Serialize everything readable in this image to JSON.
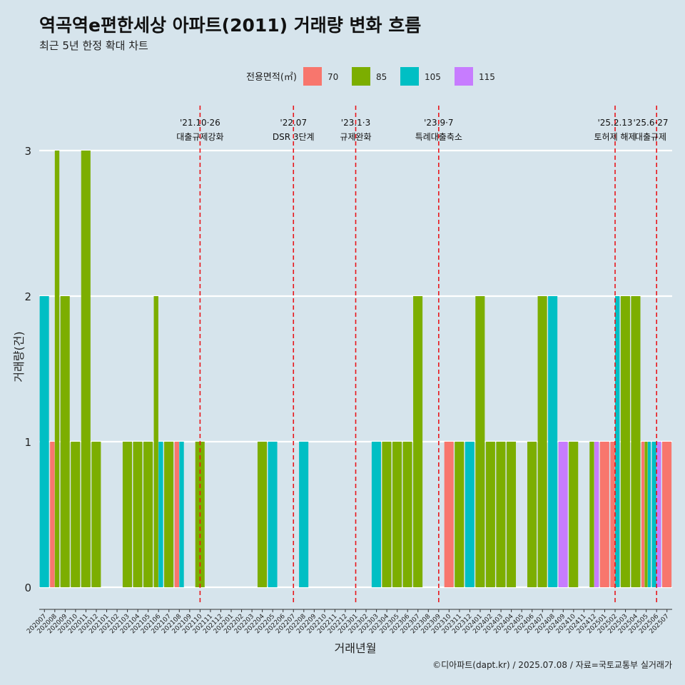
{
  "chart_data": {
    "type": "bar",
    "title": "역곡역e편한세상 아파트(2011) 거래량 변화 흐름",
    "subtitle": "최근 5년 한정 확대 차트",
    "xlabel": "거래년월",
    "ylabel": "거래량(건)",
    "ylim": [
      0,
      3
    ],
    "yticks": [
      "0",
      "1",
      "2",
      "3"
    ],
    "grid": true,
    "legend": {
      "title": "전용면적(㎡)",
      "position": "top"
    },
    "categories": [
      "202007",
      "202008",
      "202009",
      "202010",
      "202011",
      "202012",
      "202101",
      "202102",
      "202103",
      "202104",
      "202105",
      "202106",
      "202107",
      "202108",
      "202109",
      "202110",
      "202111",
      "202112",
      "202201",
      "202202",
      "202203",
      "202204",
      "202205",
      "202206",
      "202207",
      "202208",
      "202209",
      "202210",
      "202211",
      "202212",
      "202301",
      "202302",
      "202303",
      "202304",
      "202305",
      "202306",
      "202307",
      "202308",
      "202309",
      "202310",
      "202311",
      "202312",
      "202401",
      "202402",
      "202403",
      "202404",
      "202405",
      "202406",
      "202407",
      "202408",
      "202409",
      "202410",
      "202411",
      "202412",
      "202501",
      "202502",
      "202503",
      "202504",
      "202505",
      "202506",
      "202507"
    ],
    "series": [
      {
        "name": "70",
        "color": "#F8766D",
        "values": [
          0,
          1,
          0,
          0,
          0,
          0,
          0,
          0,
          0,
          0,
          0,
          0,
          0,
          1,
          0,
          0,
          0,
          0,
          0,
          0,
          0,
          0,
          0,
          0,
          0,
          0,
          0,
          0,
          0,
          0,
          0,
          0,
          0,
          0,
          0,
          0,
          0,
          0,
          0,
          1,
          0,
          0,
          0,
          0,
          0,
          0,
          0,
          0,
          0,
          0,
          0,
          0,
          0,
          0,
          1,
          1,
          0,
          0,
          1,
          0,
          1
        ]
      },
      {
        "name": "85",
        "color": "#7CAE00",
        "values": [
          0,
          3,
          2,
          1,
          3,
          1,
          0,
          0,
          1,
          1,
          1,
          2,
          1,
          0,
          0,
          1,
          0,
          0,
          0,
          0,
          0,
          1,
          0,
          0,
          0,
          0,
          0,
          0,
          0,
          0,
          0,
          0,
          0,
          1,
          1,
          1,
          2,
          0,
          0,
          0,
          1,
          0,
          2,
          1,
          1,
          1,
          0,
          1,
          2,
          0,
          0,
          1,
          0,
          1,
          0,
          0,
          2,
          2,
          1,
          0,
          0
        ]
      },
      {
        "name": "105",
        "color": "#00BFC4",
        "values": [
          2,
          0,
          0,
          0,
          0,
          0,
          0,
          0,
          0,
          0,
          0,
          1,
          0,
          1,
          0,
          0,
          0,
          0,
          0,
          0,
          0,
          0,
          1,
          0,
          0,
          1,
          0,
          0,
          0,
          0,
          0,
          0,
          1,
          0,
          0,
          0,
          0,
          0,
          0,
          0,
          0,
          1,
          0,
          0,
          0,
          0,
          0,
          0,
          0,
          2,
          0,
          0,
          0,
          0,
          0,
          2,
          0,
          0,
          1,
          1,
          0
        ]
      },
      {
        "name": "115",
        "color": "#C77CFF",
        "values": [
          0,
          0,
          0,
          0,
          0,
          0,
          0,
          0,
          0,
          0,
          0,
          0,
          0,
          0,
          0,
          0,
          0,
          0,
          0,
          0,
          0,
          0,
          0,
          0,
          0,
          0,
          0,
          0,
          0,
          0,
          0,
          0,
          0,
          0,
          0,
          0,
          0,
          0,
          0,
          0,
          0,
          0,
          0,
          0,
          0,
          0,
          0,
          0,
          0,
          0,
          1,
          0,
          0,
          1,
          0,
          0,
          0,
          0,
          0,
          1,
          0
        ]
      }
    ],
    "events": [
      {
        "at": "202110",
        "date": "'21.10·26",
        "label": "대출규제강화"
      },
      {
        "at": "202207",
        "date": "'22.07",
        "label": "DSR 3단계"
      },
      {
        "at": "202301",
        "date": "'23.1·3",
        "label": "규제완화"
      },
      {
        "at": "202309",
        "date": "'23.9·7",
        "label": "특례대출축소"
      },
      {
        "at": "202502",
        "date": "'25.2.13",
        "label": "토허제 해제"
      },
      {
        "at": "202506",
        "date": "'25.6·27",
        "label": "대출규제"
      }
    ],
    "caption": "©디아파트(dapt.kr) / 2025.07.08 / 자료=국토교통부 실거래가"
  }
}
